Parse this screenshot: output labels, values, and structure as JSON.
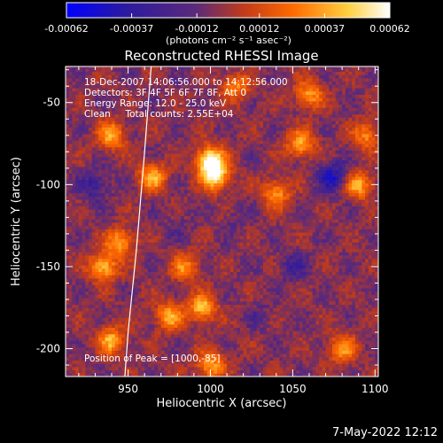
{
  "chart_data": {
    "type": "heatmap",
    "title": "Reconstructed RHESSI Image",
    "xlabel": "Heliocentric X (arcsec)",
    "ylabel": "Heliocentric Y (arcsec)",
    "xlim": [
      912,
      1102
    ],
    "ylim": [
      -217,
      -28
    ],
    "x_ticks": [
      950,
      1000,
      1050,
      1100
    ],
    "y_ticks": [
      -50,
      -100,
      -150,
      -200
    ],
    "colorbar": {
      "range": [
        -0.00062,
        0.00062
      ],
      "tick_values": [
        -0.00062,
        -0.00037,
        -0.00012,
        0.00012,
        0.00037,
        0.00062
      ],
      "tick_labels": [
        "-0.00062",
        "-0.00037",
        "-0.00012",
        "0.00012",
        "0.00037",
        "0.00062"
      ],
      "units_label": "(photons cm⁻² s⁻¹ asec⁻²)",
      "colormap": [
        "#0000ff",
        "#2b1aa0",
        "#5b2a7a",
        "#c23b1a",
        "#ff6a00",
        "#ffd040",
        "#ffffff"
      ]
    },
    "annotations": [
      "18-Dec-2007 14:06:56.000 to 14:12:56.000",
      "Detectors: 3F 4F 5F 6F 7F 8F, Att 0",
      "Energy Range: 12.0 - 25.0 keV",
      "Clean     Total counts: 2.55E+04"
    ],
    "peak_label": "Position of Peak = [1000,-85]",
    "peak_position": [
      1000,
      -85
    ],
    "bright_sources": [
      {
        "x": 1000,
        "y": -85,
        "value": 0.00062
      },
      {
        "x": 1003,
        "y": -95,
        "value": 0.0005
      },
      {
        "x": 965,
        "y": -95,
        "value": 0.00035
      },
      {
        "x": 940,
        "y": -70,
        "value": 0.00035
      },
      {
        "x": 935,
        "y": -150,
        "value": 0.0004
      },
      {
        "x": 945,
        "y": -135,
        "value": 0.00035
      },
      {
        "x": 985,
        "y": -150,
        "value": 0.00025
      },
      {
        "x": 995,
        "y": -175,
        "value": 0.0004
      },
      {
        "x": 975,
        "y": -180,
        "value": 0.00035
      },
      {
        "x": 1040,
        "y": -105,
        "value": 0.0003
      },
      {
        "x": 1055,
        "y": -75,
        "value": 0.00035
      },
      {
        "x": 1060,
        "y": -45,
        "value": 0.0003
      },
      {
        "x": 1090,
        "y": -100,
        "value": 0.00035
      },
      {
        "x": 1095,
        "y": -70,
        "value": 0.00025
      },
      {
        "x": 1080,
        "y": -200,
        "value": 0.0003
      },
      {
        "x": 1000,
        "y": -210,
        "value": 0.00035
      },
      {
        "x": 1015,
        "y": -40,
        "value": 0.00025
      },
      {
        "x": 940,
        "y": -195,
        "value": 0.00035
      }
    ],
    "dark_sources": [
      {
        "x": 1075,
        "y": -95,
        "value": -0.00045
      },
      {
        "x": 930,
        "y": -100,
        "value": -0.00035
      },
      {
        "x": 1050,
        "y": -150,
        "value": -0.0003
      },
      {
        "x": 980,
        "y": -125,
        "value": -0.0002
      },
      {
        "x": 1030,
        "y": -180,
        "value": -0.0002
      },
      {
        "x": 1015,
        "y": -120,
        "value": -0.0002
      }
    ],
    "limb_curve": [
      [
        964,
        -28
      ],
      [
        960,
        -80
      ],
      [
        955,
        -140
      ],
      [
        950,
        -190
      ],
      [
        948,
        -217
      ]
    ],
    "grid": false
  },
  "footer": {
    "datestamp": "7-May-2022 12:12"
  }
}
